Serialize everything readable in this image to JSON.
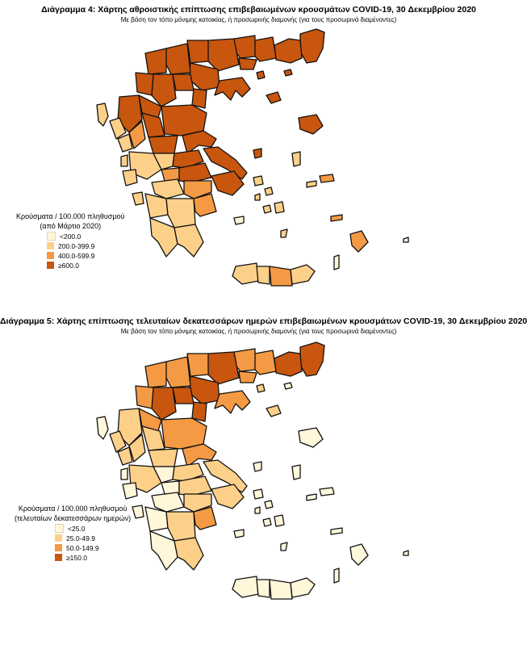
{
  "maps": [
    {
      "title": "Διάγραμμα 4: Χάρτης αθροιστικής επίπτωσης επιβεβαιωμένων κρουσμάτων COVID-19, 30 Δεκεμβρίου 2020",
      "subtitle": "Με βάση τον τόπο μόνιμης κατοικίας, ή προσωρινής διαμονής (για τους προσωρινά διαμένοντες)",
      "legend": {
        "title_line1": "Κρούσματα / 100.000 πληθυσμού",
        "title_line2": "(από Μάρτιο 2020)",
        "items": [
          {
            "label": "<200.0",
            "color": "#FFF7DA"
          },
          {
            "label": "200.0-399.9",
            "color": "#FDD08A"
          },
          {
            "label": "400.0-599.9",
            "color": "#F59A44"
          },
          {
            "label": "≥600.0",
            "color": "#C8560F"
          }
        ]
      }
    },
    {
      "title": "Διάγραμμα 5: Χάρτης επίπτωσης τελευταίων δεκατεσσάρων ημερών επιβεβαιωμένων κρουσμάτων COVID-19, 30 Δεκεμβρίου 2020",
      "subtitle": "Με βάση τον τόπο μόνιμης κατοικίας, ή προσωρινής διαμονής (για τους προσωρινά διαμένοντες)",
      "legend": {
        "title_line1": "Κρούσματα / 100.000 πληθυσμού",
        "title_line2": "(τελευταίων δεκατεσσάρων ημερών)",
        "items": [
          {
            "label": "<25.0",
            "color": "#FFF7DA"
          },
          {
            "label": "25.0-49.9",
            "color": "#FDD08A"
          },
          {
            "label": "50.0-149.9",
            "color": "#F59A44"
          },
          {
            "label": "≥150.0",
            "color": "#C8560F"
          }
        ]
      }
    }
  ]
}
